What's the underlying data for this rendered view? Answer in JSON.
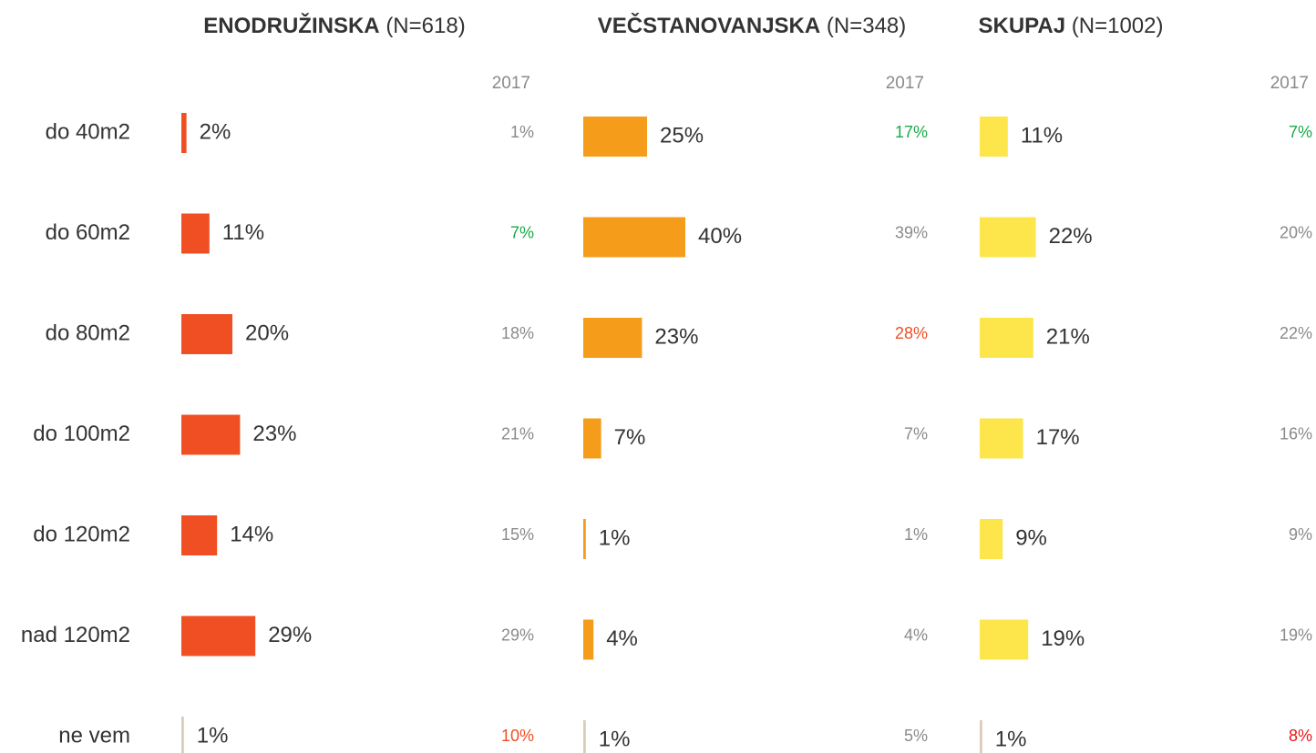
{
  "categories": [
    "do 40m2",
    "do 60m2",
    "do 80m2",
    "do 100m2",
    "do 120m2",
    "nad 120m2",
    "ne vem"
  ],
  "chart_data": [
    {
      "type": "bar",
      "title": "ENODRUŽINSKA",
      "subtitle": "(N=618)",
      "xlim": [
        0,
        100
      ],
      "values": [
        2,
        11,
        20,
        23,
        14,
        29,
        1
      ],
      "value_labels": [
        "2%",
        "11%",
        "20%",
        "23%",
        "14%",
        "29%",
        "1%"
      ],
      "colors": [
        "#f04e23",
        "#f04e23",
        "#f04e23",
        "#f04e23",
        "#f04e23",
        "#f04e23",
        "#d9cdb8"
      ],
      "comparison": {
        "name": "2017",
        "values": [
          1,
          7,
          18,
          21,
          15,
          29,
          10
        ],
        "value_labels": [
          "1%",
          "7%",
          "18%",
          "21%",
          "15%",
          "29%",
          "10%"
        ],
        "colors": [
          "#8a8a8a",
          "#1aaa4a",
          "#8a8a8a",
          "#8a8a8a",
          "#8a8a8a",
          "#8a8a8a",
          "#f04e23"
        ]
      }
    },
    {
      "type": "bar",
      "title": "VEČSTANOVANJSKA",
      "subtitle": "(N=348)",
      "xlim": [
        0,
        100
      ],
      "values": [
        25,
        40,
        23,
        7,
        1,
        4,
        1
      ],
      "value_labels": [
        "25%",
        "40%",
        "23%",
        "7%",
        "1%",
        "4%",
        "1%"
      ],
      "colors": [
        "#f59c1a",
        "#f59c1a",
        "#f59c1a",
        "#f59c1a",
        "#f59c1a",
        "#f59c1a",
        "#d9cdb8"
      ],
      "comparison": {
        "name": "2017",
        "values": [
          17,
          39,
          28,
          7,
          1,
          4,
          5
        ],
        "value_labels": [
          "17%",
          "39%",
          "28%",
          "7%",
          "1%",
          "4%",
          "5%"
        ],
        "colors": [
          "#1aaa4a",
          "#8a8a8a",
          "#f04e23",
          "#8a8a8a",
          "#8a8a8a",
          "#8a8a8a",
          "#8a8a8a"
        ]
      }
    },
    {
      "type": "bar",
      "title": "SKUPAJ",
      "subtitle": "(N=1002)",
      "xlim": [
        0,
        100
      ],
      "values": [
        11,
        22,
        21,
        17,
        9,
        19,
        1
      ],
      "value_labels": [
        "11%",
        "22%",
        "21%",
        "17%",
        "9%",
        "19%",
        "1%"
      ],
      "colors": [
        "#fde64b",
        "#fde64b",
        "#fde64b",
        "#fde64b",
        "#fde64b",
        "#fde64b",
        "#d9cdb8"
      ],
      "comparison": {
        "name": "2017",
        "values": [
          7,
          20,
          22,
          16,
          9,
          19,
          8
        ],
        "value_labels": [
          "7%",
          "20%",
          "22%",
          "16%",
          "9%",
          "19%",
          "8%"
        ],
        "colors": [
          "#1aaa4a",
          "#8a8a8a",
          "#8a8a8a",
          "#8a8a8a",
          "#8a8a8a",
          "#8a8a8a",
          "#e8161b"
        ]
      }
    }
  ]
}
